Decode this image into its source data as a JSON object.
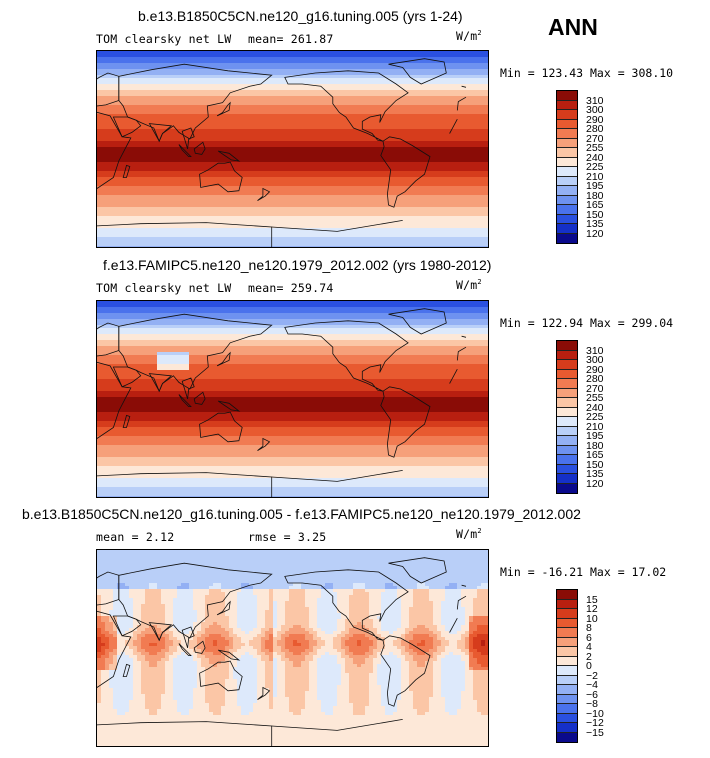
{
  "season": "ANN",
  "units_prefix": "W/m",
  "units_sup": "2",
  "colors": {
    "abs": [
      "#0a0a8c",
      "#1530c8",
      "#2a50e0",
      "#4a72ec",
      "#6e92f0",
      "#93b0f4",
      "#b9cff8",
      "#dde9fb",
      "#fde8d8",
      "#fbc6a6",
      "#f6a07a",
      "#f17b52",
      "#e85a30",
      "#d63c1c",
      "#b81f10",
      "#8a0c06"
    ],
    "diff": [
      "#0a0a8c",
      "#1530c8",
      "#2a50e0",
      "#4a72ec",
      "#6e92f0",
      "#93b0f4",
      "#b9cff8",
      "#dde9fb",
      "#fde8d8",
      "#fbc6a6",
      "#f6a07a",
      "#f17b52",
      "#e85a30",
      "#d63c1c",
      "#b81f10",
      "#8a0c06"
    ]
  },
  "panels": [
    {
      "title": "b.e13.B1850C5CN.ne120_g16.tuning.005 (yrs 1-24)",
      "variable": "TOM clearsky net LW",
      "mean_text": "mean= 261.87",
      "rmse_text": "",
      "minmax": "Min = 123.43 Max = 308.10",
      "levels": [
        "310",
        "300",
        "290",
        "280",
        "270",
        "255",
        "240",
        "225",
        "210",
        "195",
        "180",
        "165",
        "150",
        "135",
        "120"
      ],
      "scale": "abs",
      "field": "model"
    },
    {
      "title": "f.e13.FAMIPC5.ne120_ne120.1979_2012.002 (yrs 1980-2012)",
      "variable": "TOM clearsky net LW",
      "mean_text": "mean= 259.74",
      "rmse_text": "",
      "minmax": "Min = 122.94 Max = 299.04",
      "levels": [
        "310",
        "300",
        "290",
        "280",
        "270",
        "255",
        "240",
        "225",
        "210",
        "195",
        "180",
        "165",
        "150",
        "135",
        "120"
      ],
      "scale": "abs",
      "field": "obs"
    },
    {
      "title": "b.e13.B1850C5CN.ne120_g16.tuning.005 - f.e13.FAMIPC5.ne120_ne120.1979_2012.002",
      "variable": "mean =    2.12",
      "mean_text": "rmse =    3.25",
      "rmse_text": "",
      "minmax": "Min = -16.21 Max =  17.02",
      "levels": [
        "15",
        "12",
        "10",
        "8",
        "6",
        "4",
        "2",
        "0",
        "−2",
        "−4",
        "−6",
        "−8",
        "−10",
        "−12",
        "−15"
      ],
      "scale": "diff",
      "field": "diff"
    }
  ]
}
